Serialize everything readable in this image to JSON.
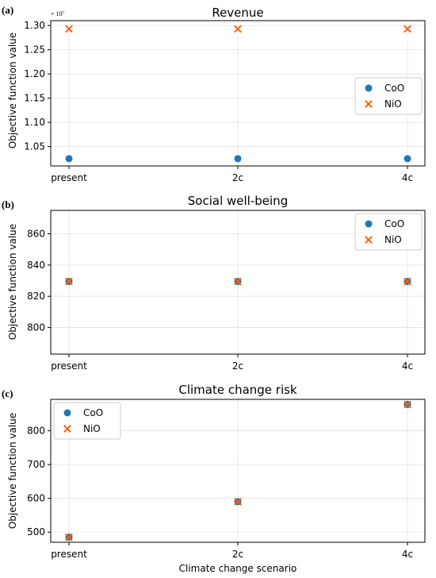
{
  "colors": {
    "coo": "#1f77b4",
    "nio": "#ff5f0f",
    "grid": "#e3e3e3"
  },
  "common_xlabel": "Climate change scenario",
  "chart_data": [
    {
      "type": "scatter",
      "panel_label": "(a)",
      "title": "Revenue",
      "ylabel": "Objective function value",
      "offset_label": "× 10⁷",
      "categories": [
        "present",
        "2c",
        "4c"
      ],
      "ylim": [
        1.01,
        1.31
      ],
      "yticks": [
        1.05,
        1.1,
        1.15,
        1.2,
        1.25,
        1.3
      ],
      "ytick_labels": [
        "1.05",
        "1.10",
        "1.15",
        "1.20",
        "1.25",
        "1.30"
      ],
      "legend_position": "center-right",
      "series": [
        {
          "name": "CoO",
          "marker": "circle",
          "values": [
            1.025,
            1.025,
            1.025
          ]
        },
        {
          "name": "NiO",
          "marker": "x",
          "values": [
            1.293,
            1.293,
            1.293
          ]
        }
      ]
    },
    {
      "type": "scatter",
      "panel_label": "(b)",
      "title": "Social well-being",
      "ylabel": "Objective function value",
      "categories": [
        "present",
        "2c",
        "4c"
      ],
      "ylim": [
        783,
        875
      ],
      "yticks": [
        800,
        820,
        840,
        860
      ],
      "ytick_labels": [
        "800",
        "820",
        "840",
        "860"
      ],
      "legend_position": "top-right",
      "series": [
        {
          "name": "CoO",
          "marker": "circle",
          "values": [
            829.5,
            829.5,
            829.5
          ]
        },
        {
          "name": "NiO",
          "marker": "x",
          "values": [
            829.5,
            829.5,
            829.5
          ]
        }
      ]
    },
    {
      "type": "scatter",
      "panel_label": "(c)",
      "title": "Climate change risk",
      "ylabel": "Objective function value",
      "categories": [
        "present",
        "2c",
        "4c"
      ],
      "ylim": [
        470,
        893
      ],
      "yticks": [
        500,
        600,
        700,
        800
      ],
      "ytick_labels": [
        "500",
        "600",
        "700",
        "800"
      ],
      "legend_position": "top-left",
      "series": [
        {
          "name": "CoO",
          "marker": "circle",
          "values": [
            485,
            590,
            878
          ]
        },
        {
          "name": "NiO",
          "marker": "x",
          "values": [
            485,
            590,
            878
          ]
        }
      ]
    }
  ]
}
